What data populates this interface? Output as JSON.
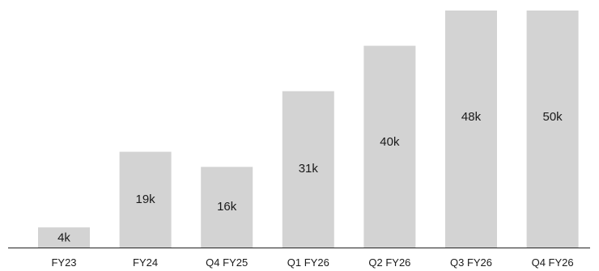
{
  "chart_data": {
    "type": "bar",
    "title": "",
    "xlabel": "",
    "ylabel": "",
    "categories": [
      "FY23",
      "FY24",
      "Q4 FY25",
      "Q1 FY26",
      "Q2 FY26",
      "Q3 FY26",
      "Q4 FY26"
    ],
    "values": [
      4,
      19,
      16,
      31,
      40,
      48,
      50
    ],
    "value_labels": [
      "4k",
      "19k",
      "16k",
      "31k",
      "40k",
      "48k",
      "50k"
    ],
    "unit": "k",
    "ylim": [
      0,
      47
    ],
    "grid": false,
    "legend": "none",
    "bar_color": "#d3d3d3",
    "axis_color": "#222222",
    "text_color": "#1a1a1a"
  }
}
